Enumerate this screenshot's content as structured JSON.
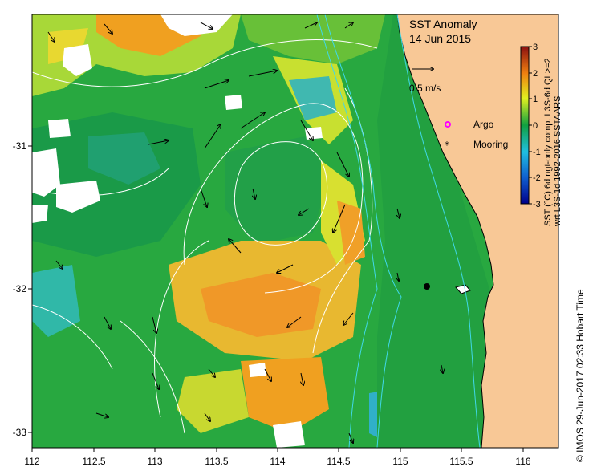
{
  "map": {
    "title": "SST Anomaly",
    "date": "14 Jun 2015",
    "scale_label": "0.5 m/s",
    "x_ticks": [
      "112",
      "112.5",
      "113",
      "113.5",
      "114",
      "114.5",
      "115",
      "115.5",
      "116"
    ],
    "y_ticks": [
      "-31",
      "-32",
      "-33"
    ],
    "legend": {
      "argo": "Argo",
      "mooring": "Mooring"
    },
    "colorbar": {
      "ticks": [
        "3",
        "2",
        "1",
        "0",
        "-1",
        "-2",
        "-3"
      ],
      "label_line1": "SST (°C) 6d ngt-only comp. L3S-6d QL>=2",
      "label_line2": "wrt L3S-1d 1992-2016 SSTAARS"
    },
    "credit": "© IMOS 29-Jun-2017 02:33 Hobart Time",
    "colors": {
      "land": "#f8c896",
      "anomaly_neg3": "#00008b",
      "anomaly_neg1": "#20c0e0",
      "anomaly_0": "#10a040",
      "anomaly_pos1": "#e0f020",
      "anomaly_pos2": "#f08010",
      "anomaly_pos3": "#a01010",
      "argo": "#ff00ff",
      "mooring": "#000000"
    }
  }
}
